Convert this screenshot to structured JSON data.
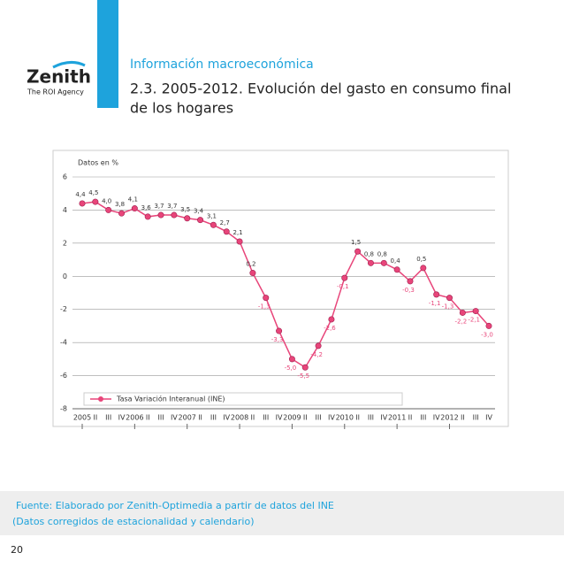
{
  "header": {
    "section": "Información macroeconómica",
    "title_line1": "2.3.  2005-2012. Evolución del gasto en consumo final",
    "title_line2": "de los hogares",
    "logo": "Zenith",
    "logo_tagline": "The ROI Agency"
  },
  "chart_data": {
    "type": "line",
    "y_label": "Datos en %",
    "categories": [
      "2005",
      "II",
      "III",
      "IV",
      "2006",
      "II",
      "III",
      "IV",
      "2007",
      "II",
      "III",
      "IV",
      "2008",
      "II",
      "III",
      "IV",
      "2009",
      "II",
      "III",
      "IV",
      "2010",
      "II",
      "III",
      "IV",
      "2011",
      "II",
      "III",
      "IV",
      "2012",
      "II",
      "III",
      "IV"
    ],
    "series": [
      {
        "name": "Tasa Variación Interanual (INE)",
        "color": "#e8457a",
        "values": [
          4.4,
          4.5,
          4.0,
          3.8,
          4.1,
          3.6,
          3.7,
          3.7,
          3.5,
          3.4,
          3.1,
          2.7,
          2.1,
          0.2,
          -1.3,
          -3.3,
          -5.0,
          -5.5,
          -4.2,
          -2.6,
          -0.1,
          1.5,
          0.8,
          0.8,
          0.4,
          -0.3,
          0.5,
          -1.1,
          -1.3,
          -2.2,
          -2.1,
          -3.0
        ],
        "value_labels": [
          "4,4",
          "4,5",
          "4,0",
          "3,8",
          "4,1",
          "3,6",
          "3,7",
          "3,7",
          "3,5",
          "3,4",
          "3,1",
          "2,7",
          "2,1",
          "0,2",
          "-1,3",
          "-3,3",
          "-5,0",
          "-5,5",
          "-4,2",
          "-2,6",
          "-0,1",
          "1,5",
          "0,8",
          "0,8",
          "0,4",
          "-0,3",
          "0,5",
          "-1,1",
          "-1,3",
          "-2,2",
          "-2,1",
          "-3,0"
        ]
      }
    ],
    "ylim": [
      -8,
      6
    ],
    "yticks": [
      6,
      4,
      2,
      0,
      -2,
      -4,
      -6,
      -8
    ],
    "grid": true
  },
  "footer": {
    "source_line1": "Fuente: Elaborado por Zenith-Optimedia a partir de datos del INE",
    "source_line2": "(Datos corregidos de estacionalidad y calendario)",
    "page": "20"
  }
}
